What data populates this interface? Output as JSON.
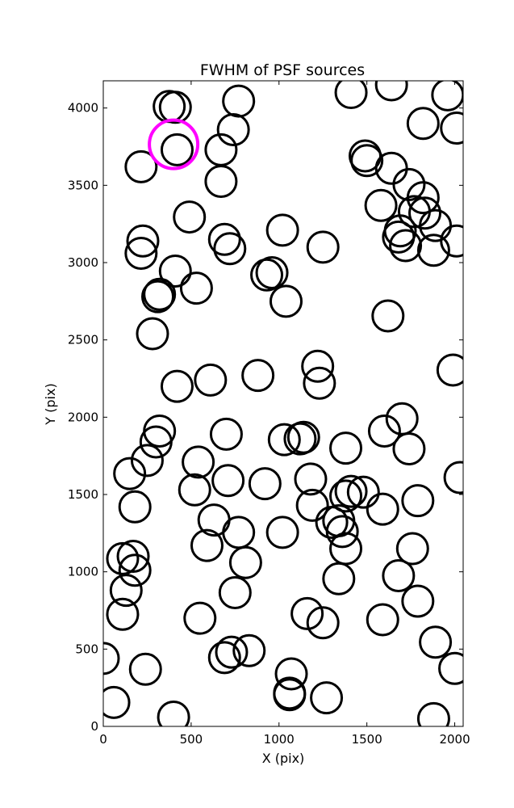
{
  "chart_data": {
    "type": "scatter",
    "title": "FWHM of PSF sources",
    "xlabel": "X (pix)",
    "ylabel": "Y (pix)",
    "xlim": [
      0,
      2048
    ],
    "ylim": [
      0,
      4176
    ],
    "xticks": [
      0,
      500,
      1000,
      1500,
      2000
    ],
    "yticks": [
      0,
      500,
      1000,
      1500,
      2000,
      2500,
      3000,
      3500,
      4000
    ],
    "grid": false,
    "marker": "open-circle",
    "colors": {
      "default": "#000000",
      "highlight": "#ff00ff"
    },
    "series": [
      {
        "values": [
          [
            375,
            4010
          ],
          [
            410,
            4005
          ],
          [
            770,
            4045
          ],
          [
            1410,
            4100
          ],
          [
            1640,
            4150
          ],
          [
            1960,
            4085
          ],
          [
            2010,
            3870
          ],
          [
            1820,
            3900
          ],
          [
            740,
            3860
          ],
          [
            670,
            3730
          ],
          [
            420,
            3730
          ],
          [
            215,
            3620
          ],
          [
            670,
            3525
          ],
          [
            1490,
            3690
          ],
          [
            1500,
            3660
          ],
          [
            1640,
            3610
          ],
          [
            1740,
            3505
          ],
          [
            1820,
            3420
          ],
          [
            1580,
            3370
          ],
          [
            1770,
            3330
          ],
          [
            1830,
            3320
          ],
          [
            1890,
            3240
          ],
          [
            2010,
            3140
          ],
          [
            1880,
            3080
          ],
          [
            1690,
            3205
          ],
          [
            1680,
            3165
          ],
          [
            1720,
            3110
          ],
          [
            490,
            3295
          ],
          [
            1020,
            3210
          ],
          [
            225,
            3140
          ],
          [
            215,
            3060
          ],
          [
            690,
            3150
          ],
          [
            720,
            3090
          ],
          [
            1250,
            3100
          ],
          [
            410,
            2945
          ],
          [
            960,
            2935
          ],
          [
            930,
            2920
          ],
          [
            320,
            2795
          ],
          [
            310,
            2780
          ],
          [
            530,
            2835
          ],
          [
            1040,
            2750
          ],
          [
            1620,
            2655
          ],
          [
            280,
            2540
          ],
          [
            880,
            2270
          ],
          [
            610,
            2240
          ],
          [
            420,
            2200
          ],
          [
            1220,
            2330
          ],
          [
            1230,
            2220
          ],
          [
            1990,
            2305
          ],
          [
            320,
            1910
          ],
          [
            300,
            1840
          ],
          [
            250,
            1720
          ],
          [
            700,
            1890
          ],
          [
            1030,
            1855
          ],
          [
            1120,
            1860
          ],
          [
            1140,
            1870
          ],
          [
            1380,
            1800
          ],
          [
            1600,
            1910
          ],
          [
            1700,
            1990
          ],
          [
            1740,
            1795
          ],
          [
            150,
            1635
          ],
          [
            540,
            1710
          ],
          [
            520,
            1530
          ],
          [
            710,
            1590
          ],
          [
            920,
            1570
          ],
          [
            1180,
            1600
          ],
          [
            1190,
            1430
          ],
          [
            1380,
            1490
          ],
          [
            1410,
            1520
          ],
          [
            1480,
            1515
          ],
          [
            1590,
            1405
          ],
          [
            1790,
            1460
          ],
          [
            2030,
            1610
          ],
          [
            180,
            1420
          ],
          [
            630,
            1335
          ],
          [
            590,
            1170
          ],
          [
            770,
            1255
          ],
          [
            1020,
            1255
          ],
          [
            1300,
            1320
          ],
          [
            1340,
            1330
          ],
          [
            1360,
            1260
          ],
          [
            1380,
            1150
          ],
          [
            1760,
            1150
          ],
          [
            810,
            1060
          ],
          [
            110,
            1085
          ],
          [
            170,
            1100
          ],
          [
            180,
            1010
          ],
          [
            130,
            880
          ],
          [
            110,
            725
          ],
          [
            550,
            700
          ],
          [
            750,
            865
          ],
          [
            1340,
            955
          ],
          [
            1680,
            975
          ],
          [
            1790,
            810
          ],
          [
            1160,
            730
          ],
          [
            1250,
            670
          ],
          [
            1590,
            690
          ],
          [
            830,
            490
          ],
          [
            730,
            480
          ],
          [
            690,
            445
          ],
          [
            0,
            440
          ],
          [
            240,
            370
          ],
          [
            1890,
            545
          ],
          [
            2000,
            375
          ],
          [
            60,
            155
          ],
          [
            1070,
            340
          ],
          [
            1060,
            215
          ],
          [
            1060,
            205
          ],
          [
            1270,
            185
          ],
          [
            400,
            60
          ],
          [
            1880,
            50
          ]
        ]
      }
    ],
    "highlight_points": [
      [
        400,
        3765
      ]
    ]
  }
}
